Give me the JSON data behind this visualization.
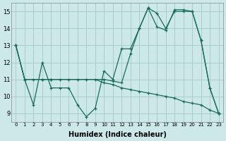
{
  "xlabel": "Humidex (Indice chaleur)",
  "bg_color": "#cce8e8",
  "grid_color": "#aacccc",
  "line_color": "#1a6b5a",
  "xlim": [
    -0.5,
    23.5
  ],
  "ylim": [
    8.5,
    15.5
  ],
  "xticks": [
    0,
    1,
    2,
    3,
    4,
    5,
    6,
    7,
    8,
    9,
    10,
    11,
    12,
    13,
    14,
    15,
    16,
    17,
    18,
    19,
    20,
    21,
    22,
    23
  ],
  "yticks": [
    9,
    10,
    11,
    12,
    13,
    14,
    15
  ],
  "line1_x": [
    0,
    1,
    2,
    3,
    4,
    5,
    6,
    7,
    8,
    9,
    10,
    11,
    12,
    13,
    14,
    15,
    16,
    17,
    18,
    19,
    20,
    21,
    22,
    23
  ],
  "line1_y": [
    13,
    11,
    9.5,
    12,
    10.5,
    10.5,
    10.5,
    9.5,
    8.8,
    9.3,
    11.5,
    11.0,
    12.8,
    12.8,
    14.0,
    15.2,
    14.9,
    14.0,
    15.0,
    15.0,
    15.0,
    13.3,
    10.5,
    9.0
  ],
  "line2_x": [
    0,
    1,
    3,
    4,
    10,
    11,
    12,
    13,
    14,
    15,
    16,
    17,
    18,
    19,
    20,
    21,
    22,
    23
  ],
  "line2_y": [
    13,
    11,
    11,
    11,
    11.0,
    10.9,
    10.8,
    12.5,
    14.0,
    15.2,
    14.1,
    13.9,
    15.1,
    15.1,
    15.0,
    13.3,
    10.5,
    9.0
  ],
  "line3_x": [
    0,
    1,
    2,
    3,
    4,
    5,
    6,
    7,
    8,
    9,
    10,
    11,
    12,
    13,
    14,
    15,
    16,
    17,
    18,
    19,
    20,
    21,
    22,
    23
  ],
  "line3_y": [
    13,
    11,
    11,
    11,
    11.0,
    11.0,
    11.0,
    11.0,
    11.0,
    11.0,
    10.8,
    10.7,
    10.5,
    10.4,
    10.3,
    10.2,
    10.1,
    10.0,
    9.9,
    9.7,
    9.6,
    9.5,
    9.2,
    9.0
  ]
}
